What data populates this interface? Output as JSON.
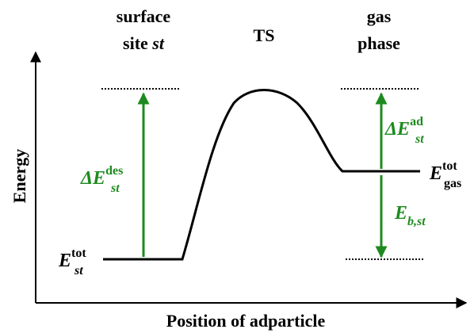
{
  "columns": [
    {
      "line1": "surface",
      "line2": "site",
      "line2_italic": "st"
    },
    {
      "line1": "TS"
    },
    {
      "line1": "gas",
      "line2": "phase"
    }
  ],
  "axes": {
    "y_label": "Energy",
    "x_label": "Position of adparticle"
  },
  "labels": {
    "desorption": {
      "main": "ΔE",
      "sub": "st",
      "sup": "des"
    },
    "adsorption": {
      "main": "ΔE",
      "sub": "st",
      "sup": "ad"
    },
    "binding": {
      "main": "E",
      "sub": "b,st"
    },
    "site_total": {
      "main": "E",
      "sub": "st",
      "sup": "tot"
    },
    "gas_total": {
      "main": "E",
      "sub": "gas",
      "sup": "tot"
    }
  }
}
